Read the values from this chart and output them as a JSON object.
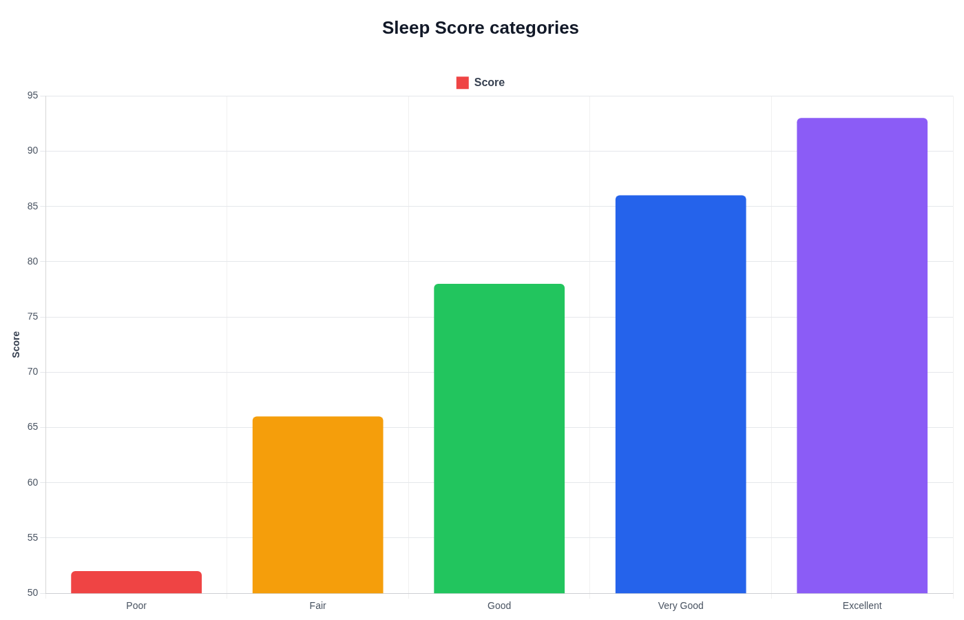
{
  "chart_data": {
    "type": "bar",
    "title": "Sleep Score categories",
    "ylabel": "Score",
    "categories": [
      "Poor",
      "Fair",
      "Good",
      "Very Good",
      "Excellent"
    ],
    "series": [
      {
        "name": "Score",
        "values": [
          52,
          66,
          78,
          86,
          93
        ],
        "colors": [
          "#ef4444",
          "#f59e0b",
          "#22c55e",
          "#2563eb",
          "#8b5cf6"
        ]
      }
    ],
    "ylim": [
      50,
      95
    ],
    "yticks": [
      50,
      55,
      60,
      65,
      70,
      75,
      80,
      85,
      90,
      95
    ],
    "grid": true,
    "legend": "top"
  }
}
